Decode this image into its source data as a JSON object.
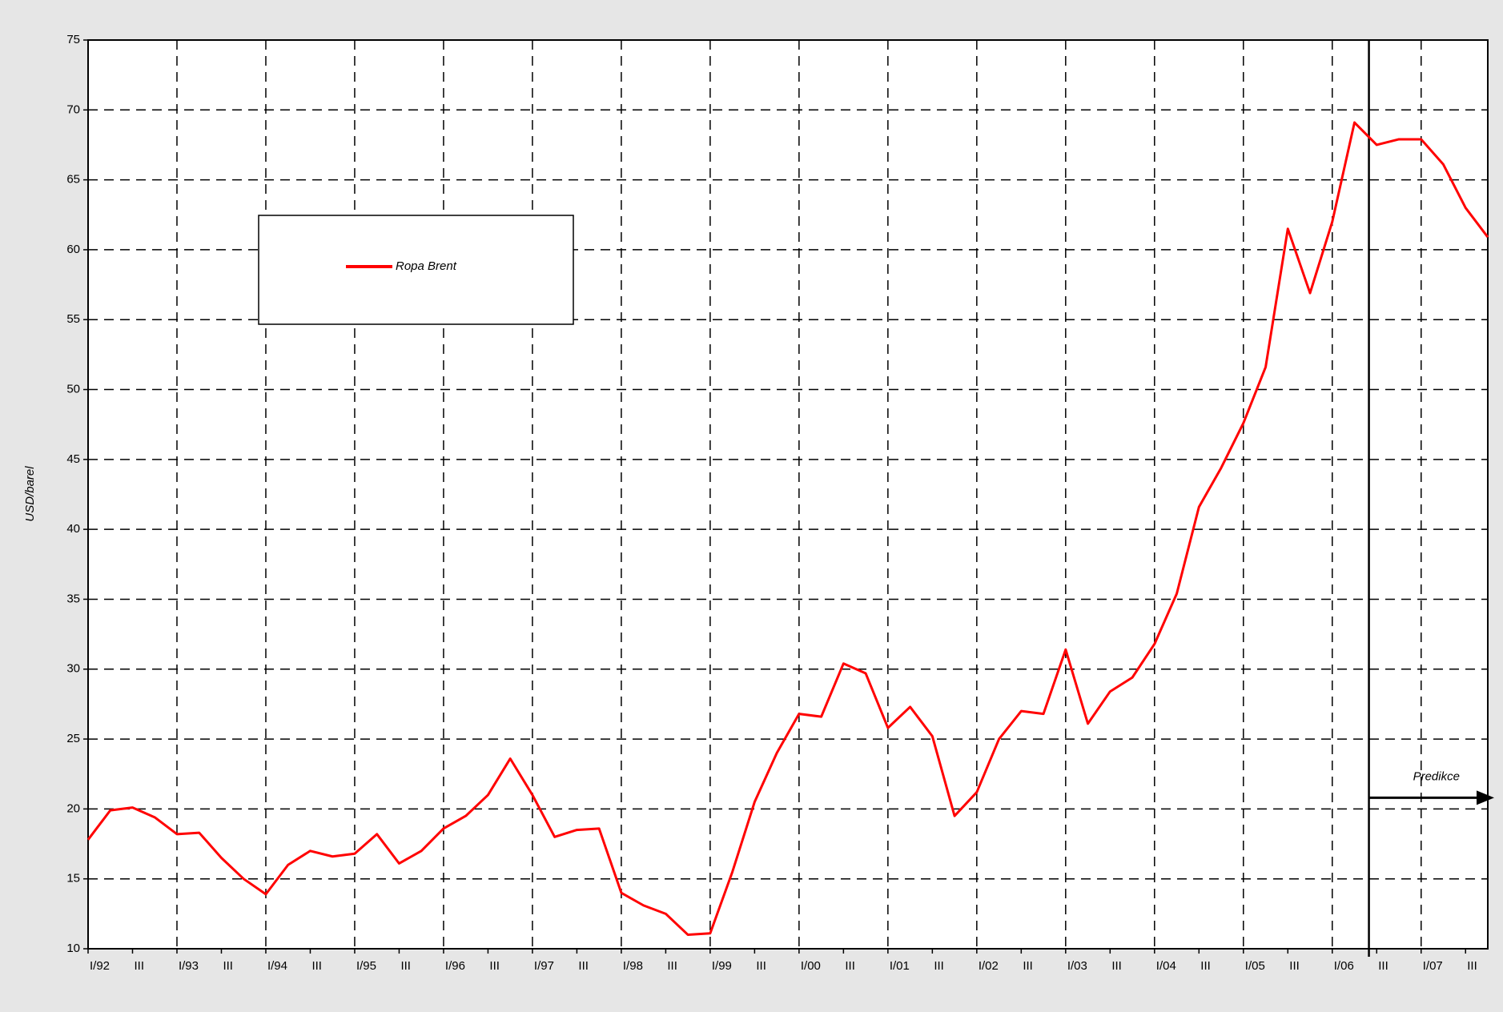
{
  "chart_data": {
    "type": "line",
    "y_label": "USD/barel",
    "annotation": "Predikce",
    "categories": [
      "I/92",
      null,
      "III",
      null,
      "I/93",
      null,
      "III",
      null,
      "I/94",
      null,
      "III",
      null,
      "I/95",
      null,
      "III",
      null,
      "I/96",
      null,
      "III",
      null,
      "I/97",
      null,
      "III",
      null,
      "I/98",
      null,
      "III",
      null,
      "I/99",
      null,
      "III",
      null,
      "I/00",
      null,
      "III",
      null,
      "I/01",
      null,
      "III",
      null,
      "I/02",
      null,
      "III",
      null,
      "I/03",
      null,
      "III",
      null,
      "I/04",
      null,
      "III",
      null,
      "I/05",
      null,
      "III",
      null,
      "I/06",
      null,
      "III",
      null,
      "I/07",
      null,
      "III",
      null
    ],
    "series": [
      {
        "name": "Ropa Brent",
        "color": "#ff0000",
        "values": [
          17.8,
          19.9,
          20.1,
          19.4,
          18.2,
          18.3,
          16.5,
          15.0,
          13.9,
          16.0,
          17.0,
          16.6,
          16.8,
          18.2,
          16.1,
          17.0,
          18.6,
          19.5,
          21.0,
          23.6,
          21.0,
          18.0,
          18.5,
          18.6,
          14.0,
          13.1,
          12.5,
          11.0,
          11.1,
          15.5,
          20.5,
          24.0,
          26.8,
          26.6,
          30.4,
          29.7,
          25.8,
          27.3,
          25.2,
          19.5,
          21.2,
          25.0,
          27.0,
          26.8,
          31.4,
          26.1,
          28.4,
          29.4,
          31.8,
          35.4,
          41.6,
          44.4,
          47.6,
          51.6,
          61.5,
          56.9,
          62.0,
          69.1,
          67.5,
          67.9,
          67.9,
          66.1,
          63.0,
          60.9
        ]
      }
    ],
    "ylim": [
      10,
      75
    ],
    "yticks": [
      10,
      15,
      20,
      25,
      30,
      35,
      40,
      45,
      50,
      55,
      60,
      65,
      70,
      75
    ],
    "grid": true
  }
}
